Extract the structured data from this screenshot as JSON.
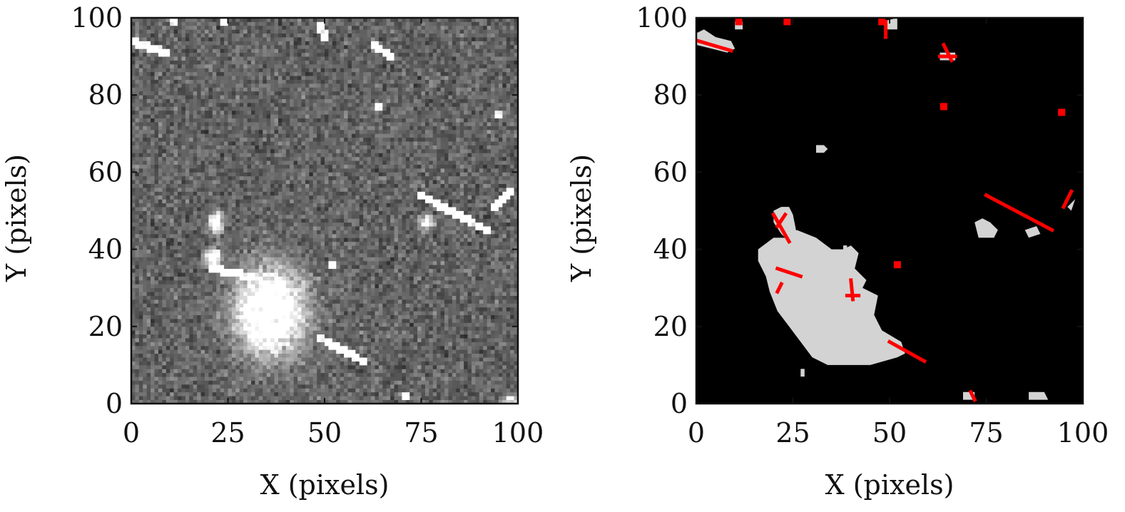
{
  "chart_data": [
    {
      "type": "heatmap",
      "panel": "left",
      "description_values": "grayscale noise image with bright sources",
      "xlabel": "X (pixels)",
      "ylabel": "Y (pixels)",
      "xlim": [
        0,
        100
      ],
      "ylim": [
        0,
        100
      ],
      "xticks": [
        "0",
        "25",
        "50",
        "75",
        "100"
      ],
      "yticks": [
        "0",
        "20",
        "40",
        "60",
        "80",
        "100"
      ],
      "colormap": "gray",
      "background_color": "#6e6e6e",
      "bright_color": "#ffffff",
      "sources": [
        {
          "kind": "blob",
          "x": 36,
          "y": 24,
          "rx": 8,
          "ry": 10,
          "peak": 1.0
        },
        {
          "kind": "blob",
          "x": 21,
          "y": 38,
          "rx": 2,
          "ry": 2,
          "peak": 0.9
        },
        {
          "kind": "blob",
          "x": 22,
          "y": 47,
          "rx": 1.5,
          "ry": 2.5,
          "peak": 0.9
        },
        {
          "kind": "blob",
          "x": 76.5,
          "y": 47,
          "rx": 1.5,
          "ry": 1.5,
          "peak": 0.85
        },
        {
          "kind": "blob",
          "x": 98,
          "y": 1,
          "rx": 2,
          "ry": 1,
          "peak": 0.7
        },
        {
          "kind": "streak",
          "x1": 75,
          "y1": 54,
          "x2": 92,
          "y2": 45,
          "peak": 1.0
        },
        {
          "kind": "streak",
          "x1": 49,
          "y1": 17,
          "x2": 60,
          "y2": 11,
          "peak": 1.0
        },
        {
          "kind": "streak",
          "x1": 0,
          "y1": 94,
          "x2": 9,
          "y2": 91,
          "peak": 1.0
        },
        {
          "kind": "streak",
          "x1": 21,
          "y1": 35,
          "x2": 31,
          "y2": 33,
          "peak": 0.9
        },
        {
          "kind": "streak",
          "x1": 63,
          "y1": 93,
          "x2": 67,
          "y2": 90,
          "peak": 1.0
        },
        {
          "kind": "streak",
          "x1": 94,
          "y1": 51,
          "x2": 98,
          "y2": 55,
          "peak": 1.0
        },
        {
          "kind": "streak",
          "x1": 49,
          "y1": 98,
          "x2": 50,
          "y2": 95,
          "peak": 1.0
        },
        {
          "kind": "dot",
          "x": 64,
          "y": 77,
          "peak": 1.0
        },
        {
          "kind": "dot",
          "x": 95,
          "y": 75,
          "peak": 1.0
        },
        {
          "kind": "dot",
          "x": 52,
          "y": 36,
          "peak": 1.0
        },
        {
          "kind": "dot",
          "x": 71,
          "y": 2,
          "peak": 1.0
        },
        {
          "kind": "dot",
          "x": 11,
          "y": 99,
          "peak": 1.0
        },
        {
          "kind": "dot",
          "x": 24,
          "y": 99,
          "peak": 1.0
        }
      ]
    },
    {
      "type": "heatmap",
      "panel": "right",
      "xlabel": "X (pixels)",
      "ylabel": "Y (pixels)",
      "xlim": [
        0,
        100
      ],
      "ylim": [
        0,
        100
      ],
      "xticks": [
        "0",
        "25",
        "50",
        "75",
        "100"
      ],
      "yticks": [
        "0",
        "20",
        "40",
        "60",
        "80",
        "100"
      ],
      "colors": {
        "background": "#000000",
        "source_mask": "#d3d3d3",
        "streak_mask": "#ff0000"
      },
      "gray_regions": [
        {
          "points": [
            [
              16,
              40
            ],
            [
              20,
              43
            ],
            [
              24,
              43
            ],
            [
              26,
              45
            ],
            [
              31,
              43
            ],
            [
              35,
              40
            ],
            [
              38,
              40
            ],
            [
              40,
              41
            ],
            [
              42,
              39
            ],
            [
              41,
              35
            ],
            [
              44,
              32
            ],
            [
              43,
              30
            ],
            [
              47,
              28
            ],
            [
              46,
              23
            ],
            [
              48,
              19
            ],
            [
              53,
              16
            ],
            [
              54,
              13
            ],
            [
              52,
              12
            ],
            [
              45,
              10
            ],
            [
              34,
              10
            ],
            [
              30,
              12
            ],
            [
              27,
              16
            ],
            [
              24,
              20
            ],
            [
              21,
              24
            ],
            [
              19,
              29
            ],
            [
              18,
              33
            ],
            [
              16,
              37
            ]
          ]
        },
        {
          "points": [
            [
              20,
              50
            ],
            [
              22,
              51
            ],
            [
              24,
              51
            ],
            [
              25,
              49
            ],
            [
              26,
              44
            ],
            [
              24,
              42
            ],
            [
              22,
              44
            ],
            [
              20,
              47
            ]
          ]
        },
        {
          "points": [
            [
              72,
              47
            ],
            [
              74,
              48
            ],
            [
              76,
              47
            ],
            [
              78,
              45
            ],
            [
              77,
              43
            ],
            [
              73,
              43
            ]
          ]
        },
        {
          "points": [
            [
              0,
              96
            ],
            [
              2,
              97
            ],
            [
              5,
              95
            ],
            [
              9,
              94
            ],
            [
              10,
              92
            ],
            [
              8,
              91
            ],
            [
              4,
              92
            ],
            [
              0,
              93
            ]
          ]
        },
        {
          "points": [
            [
              85,
              45
            ],
            [
              88,
              46
            ],
            [
              89,
              44
            ],
            [
              86,
              43
            ]
          ]
        },
        {
          "points": [
            [
              31,
              67
            ],
            [
              33,
              67
            ],
            [
              34,
              66
            ],
            [
              33,
              65
            ],
            [
              31,
              65
            ]
          ]
        },
        {
          "points": [
            [
              48,
              99
            ],
            [
              52,
              100
            ],
            [
              52,
              97
            ],
            [
              49,
              97
            ]
          ]
        },
        {
          "points": [
            [
              69,
              3
            ],
            [
              72,
              3
            ],
            [
              72,
              1
            ],
            [
              69,
              1
            ]
          ]
        },
        {
          "points": [
            [
              86,
              3
            ],
            [
              90,
              3
            ],
            [
              91,
              1
            ],
            [
              86,
              1
            ]
          ]
        },
        {
          "points": [
            [
              63,
              91
            ],
            [
              67,
              91
            ],
            [
              67,
              89
            ],
            [
              63,
              89
            ]
          ]
        },
        {
          "points": [
            [
              96,
              51
            ],
            [
              98,
              53
            ],
            [
              97,
              50
            ]
          ]
        },
        {
          "points": [
            [
              27,
              9
            ],
            [
              28,
              9
            ],
            [
              28,
              7
            ],
            [
              27,
              7
            ]
          ]
        },
        {
          "points": [
            [
              10,
              99
            ],
            [
              12,
              99
            ],
            [
              12,
              97
            ],
            [
              10,
              97
            ]
          ]
        },
        {
          "points": [
            [
              38,
              41
            ],
            [
              39,
              41
            ],
            [
              39,
              39
            ],
            [
              38,
              39
            ]
          ]
        }
      ],
      "red_segments": [
        {
          "x1": 0.5,
          "y1": 94,
          "x2": 9,
          "y2": 91.5
        },
        {
          "x1": 75,
          "y1": 54,
          "x2": 92,
          "y2": 45
        },
        {
          "x1": 50,
          "y1": 16,
          "x2": 59,
          "y2": 11
        },
        {
          "x1": 21,
          "y1": 35,
          "x2": 27,
          "y2": 33
        },
        {
          "x1": 20,
          "y1": 49,
          "x2": 24,
          "y2": 42
        },
        {
          "x1": 21,
          "y1": 46,
          "x2": 23,
          "y2": 49
        },
        {
          "x1": 40,
          "y1": 32,
          "x2": 40.5,
          "y2": 27
        },
        {
          "x1": 39,
          "y1": 28,
          "x2": 42,
          "y2": 28
        },
        {
          "x1": 64,
          "y1": 93,
          "x2": 66,
          "y2": 89
        },
        {
          "x1": 63,
          "y1": 90,
          "x2": 67,
          "y2": 90
        },
        {
          "x1": 95,
          "y1": 51,
          "x2": 97,
          "y2": 55
        },
        {
          "x1": 49,
          "y1": 99,
          "x2": 49,
          "y2": 95
        },
        {
          "x1": 21,
          "y1": 29,
          "x2": 22,
          "y2": 31
        },
        {
          "x1": 71,
          "y1": 3,
          "x2": 72,
          "y2": 1
        }
      ],
      "red_dots": [
        {
          "x": 64,
          "y": 77
        },
        {
          "x": 94.5,
          "y": 75.5
        },
        {
          "x": 52,
          "y": 36
        },
        {
          "x": 11,
          "y": 99
        },
        {
          "x": 23.5,
          "y": 99
        },
        {
          "x": 48,
          "y": 99
        }
      ]
    }
  ]
}
